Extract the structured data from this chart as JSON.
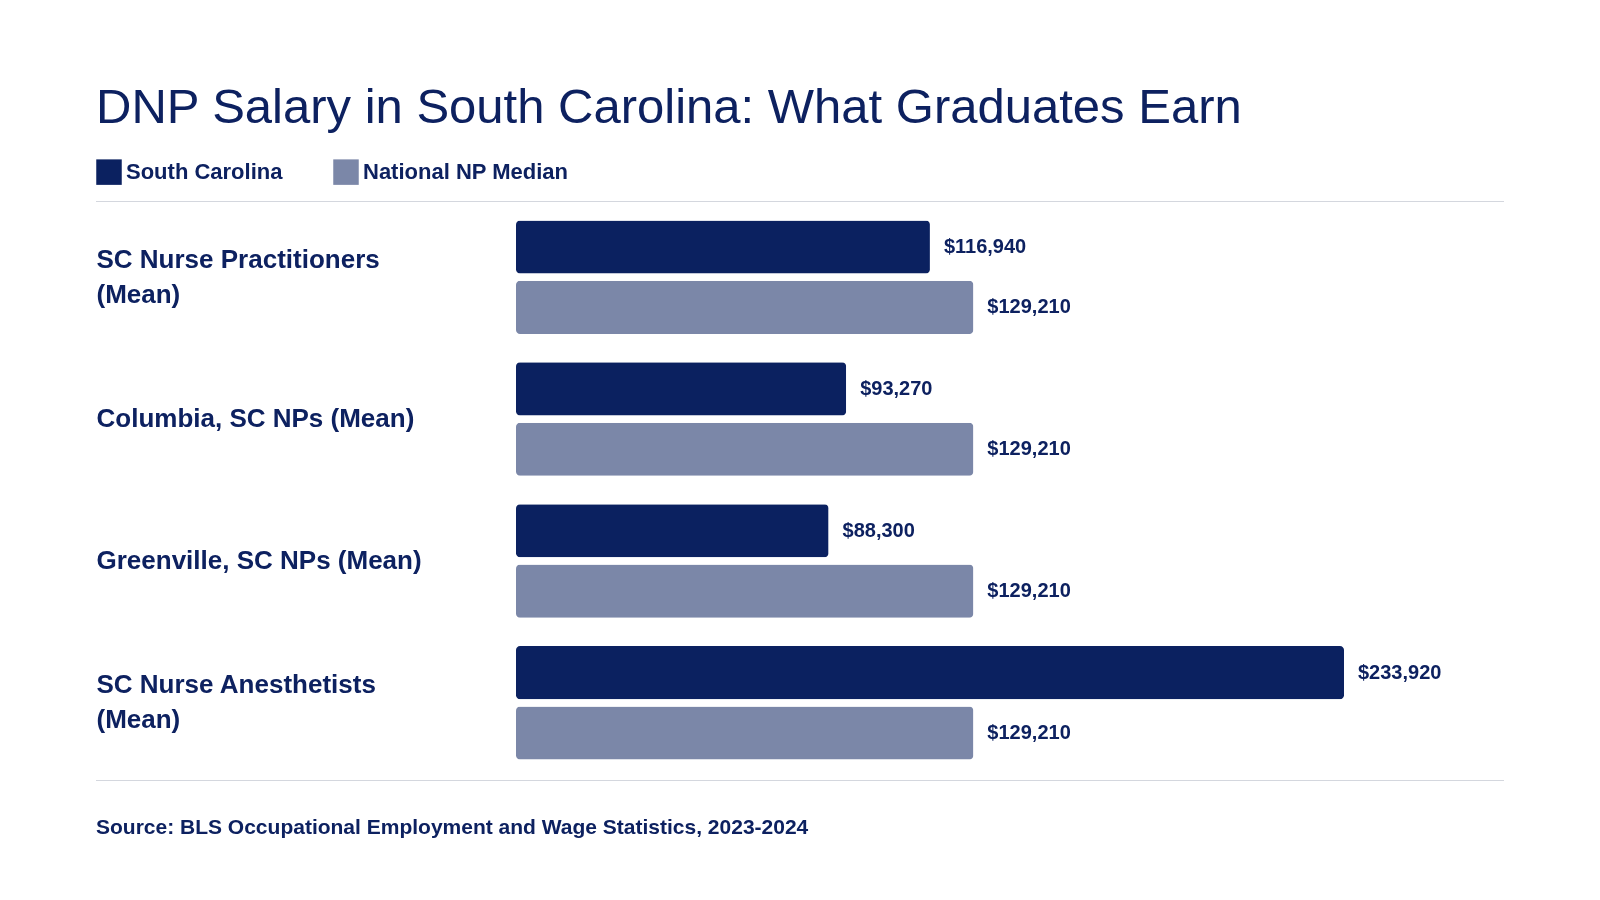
{
  "chart_data": {
    "type": "bar",
    "orientation": "horizontal",
    "title": "DNP Salary in South Carolina: What Graduates Earn",
    "categories": [
      "SC Nurse Practitioners (Mean)",
      "Columbia, SC NPs (Mean)",
      "Greenville, SC NPs (Mean)",
      "SC Nurse Anesthetists (Mean)"
    ],
    "series": [
      {
        "name": "South Carolina",
        "color": "#0b2160",
        "values": [
          116940,
          93270,
          88300,
          233920
        ],
        "value_labels": [
          "$116,940",
          "$93,270",
          "$88,300",
          "$233,920"
        ]
      },
      {
        "name": "National NP Median",
        "color": "#7b87a8",
        "values": [
          129210,
          129210,
          129210,
          129210
        ],
        "value_labels": [
          "$129,210",
          "$129,210",
          "$129,210",
          "$129,210"
        ]
      }
    ],
    "legend": "top left",
    "grid": false,
    "annotations": [
      "Source: BLS Occupational Employment and Wage Statistics, 2023-2024"
    ]
  }
}
